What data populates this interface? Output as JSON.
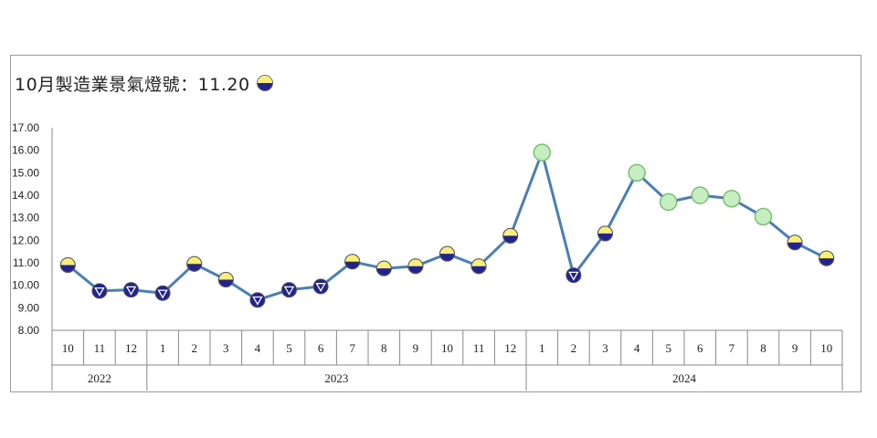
{
  "title": "10月製造業景氣燈號：11.20",
  "title_signal": "yellow-blue",
  "signal_colors": {
    "yellow": "#f6f07a",
    "blue": "#23238e",
    "green": "#c6eec0",
    "green_stroke": "#7cbf74",
    "line": "#4a7fb5"
  },
  "chart_data": {
    "type": "line",
    "title": "10月製造業景氣燈號：11.20",
    "ylim": [
      8.0,
      17.0
    ],
    "yticks": [
      "8.00",
      "9.00",
      "10.00",
      "11.00",
      "12.00",
      "13.00",
      "14.00",
      "15.00",
      "16.00",
      "17.00"
    ],
    "grid": false,
    "categories": [
      "10",
      "11",
      "12",
      "1",
      "2",
      "3",
      "4",
      "5",
      "6",
      "7",
      "8",
      "9",
      "10",
      "11",
      "12",
      "1",
      "2",
      "3",
      "4",
      "5",
      "6",
      "7",
      "8",
      "9",
      "10"
    ],
    "year_groups": [
      {
        "label": "2022",
        "count": 3
      },
      {
        "label": "2023",
        "count": 12
      },
      {
        "label": "2024",
        "count": 10
      }
    ],
    "values": [
      10.9,
      9.75,
      9.8,
      9.65,
      10.95,
      10.25,
      9.35,
      9.8,
      9.95,
      11.05,
      10.75,
      10.85,
      11.4,
      10.85,
      12.2,
      15.9,
      10.45,
      12.3,
      15.0,
      13.7,
      14.0,
      13.85,
      13.05,
      11.9,
      11.2
    ],
    "signals": [
      "yellow-blue",
      "blue",
      "blue",
      "blue",
      "yellow-blue",
      "yellow-blue",
      "blue",
      "blue",
      "blue",
      "yellow-blue",
      "yellow-blue",
      "yellow-blue",
      "yellow-blue",
      "yellow-blue",
      "yellow-blue",
      "green",
      "blue",
      "yellow-blue",
      "green",
      "green",
      "green",
      "green",
      "green",
      "yellow-blue",
      "yellow-blue"
    ]
  }
}
